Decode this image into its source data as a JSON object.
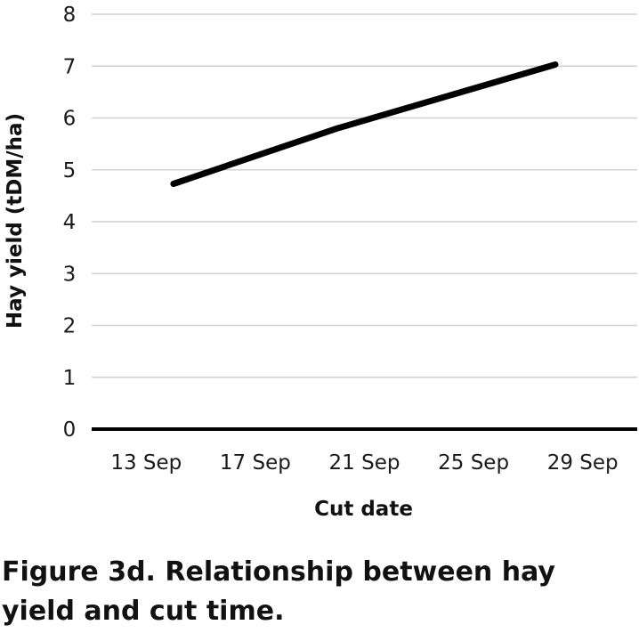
{
  "figure": {
    "caption": "Figure 3d. Relationship between hay yield and cut time."
  },
  "colors": {
    "line": "#000000",
    "grid": "#d0d0d0",
    "x_axis": "#000000",
    "text": "#1a1a1a"
  },
  "chart_data": {
    "type": "line",
    "title": "",
    "xlabel": "Cut date",
    "ylabel": "Hay yield (tDM/ha)",
    "x_ticks": [
      "13 Sep",
      "17 Sep",
      "21 Sep",
      "25 Sep",
      "29 Sep"
    ],
    "y_ticks": [
      0,
      1,
      2,
      3,
      4,
      5,
      6,
      7,
      8
    ],
    "ylim": [
      0,
      8
    ],
    "xlim": [
      "11 Sep",
      "31 Sep"
    ],
    "grid": true,
    "legend": "none",
    "series": [
      {
        "x": [
          "14 Sep",
          "20 Sep",
          "28 Sep"
        ],
        "y": [
          4.73,
          5.8,
          7.03
        ]
      }
    ]
  }
}
